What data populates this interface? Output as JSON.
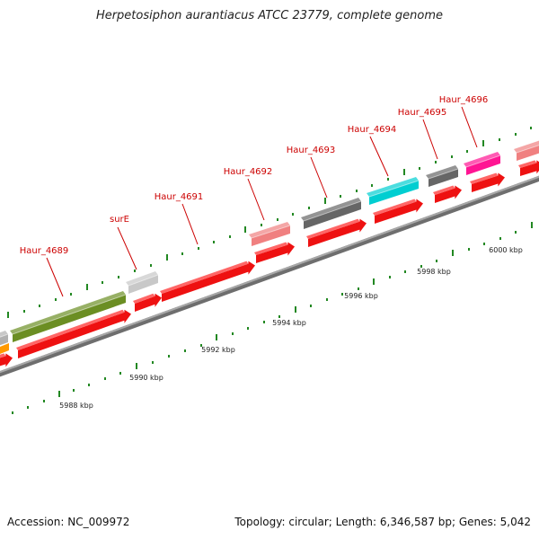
{
  "title": "Herpetosiphon aurantiacus ATCC 23779, complete genome",
  "footer": {
    "accession": "Accession: NC_009972",
    "stats": "Topology: circular; Length: 6,346,587 bp; Genes: 5,042"
  },
  "colors": {
    "backbone": "#8a8a8a",
    "cds": "#ee1111",
    "tick": "#228822",
    "label": "#cc0000",
    "leader_line": "#cc0000"
  },
  "scale_labels": [
    "5988 kbp",
    "5990 kbp",
    "5992 kbp",
    "5994 kbp",
    "5996 kbp",
    "5998 kbp",
    "6000 kbp"
  ],
  "genes": [
    {
      "label": "",
      "color": "#b0b0b0"
    },
    {
      "label": "Haur_4689",
      "color": "#6b8e23"
    },
    {
      "label": "surE",
      "color": "#c8c8c8"
    },
    {
      "label": "Haur_4691",
      "color": "#ee1111"
    },
    {
      "label": "Haur_4692",
      "color": "#f08080"
    },
    {
      "label": "Haur_4693",
      "color": "#666666"
    },
    {
      "label": "Haur_4694",
      "color": "#00ced1"
    },
    {
      "label": "Haur_4695",
      "color": "#666666"
    },
    {
      "label": "Haur_4696",
      "color": "#ff1493"
    },
    {
      "label": "",
      "color": "#f08080"
    }
  ],
  "orange_feature": {
    "color": "#ff9900"
  }
}
